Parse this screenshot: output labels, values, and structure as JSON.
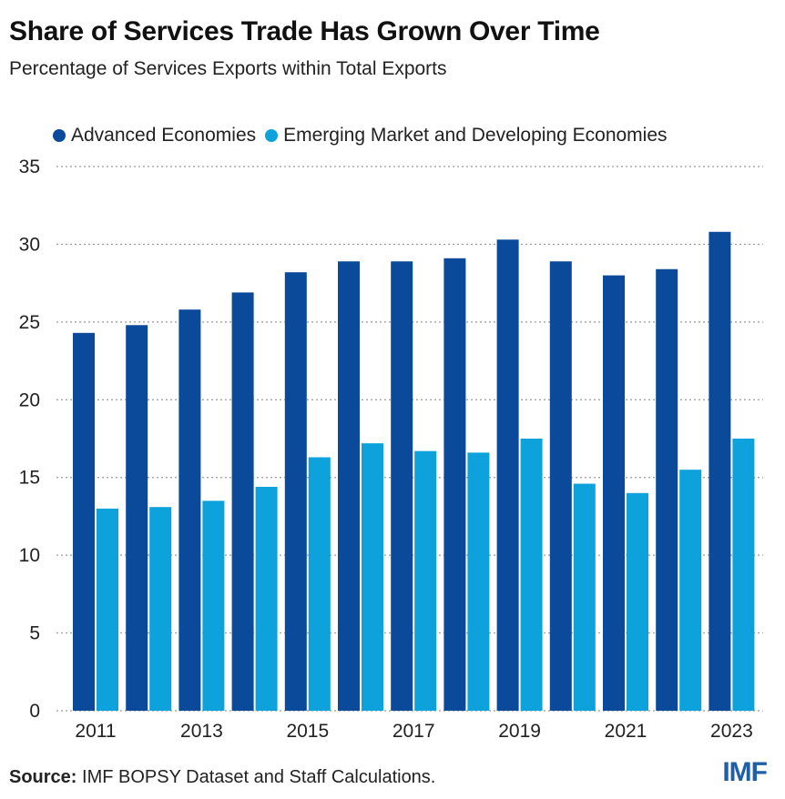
{
  "header": {
    "title": "Share of Services Trade Has Grown Over Time",
    "subtitle": "Percentage of Services Exports within Total Exports"
  },
  "colors": {
    "advanced": "#0b4a9b",
    "emerging": "#0ea2dd",
    "grid": "#9a9a9a"
  },
  "chart_data": {
    "type": "bar",
    "title": "Share of Services Trade Has Grown Over Time",
    "subtitle": "Percentage of Services Exports within Total Exports",
    "xlabel": "",
    "ylabel": "",
    "ylim": [
      0,
      35
    ],
    "yticks": [
      "0",
      "5",
      "10",
      "15",
      "20",
      "25",
      "30",
      "35"
    ],
    "ytick_values": [
      0,
      5,
      10,
      15,
      20,
      25,
      30,
      35
    ],
    "categories": [
      "2011",
      "2012",
      "2013",
      "2014",
      "2015",
      "2016",
      "2017",
      "2018",
      "2019",
      "2020",
      "2021",
      "2022",
      "2023"
    ],
    "xtick_labels": [
      "2011",
      "",
      "2013",
      "",
      "2015",
      "",
      "2017",
      "",
      "2019",
      "",
      "2021",
      "",
      "2023"
    ],
    "legend_position": "top",
    "grid": "horizontal dotted",
    "series": [
      {
        "name": "Advanced Economies",
        "values": [
          24.3,
          24.8,
          25.8,
          26.9,
          28.2,
          28.9,
          28.9,
          29.1,
          30.3,
          28.9,
          28.0,
          28.4,
          30.8
        ]
      },
      {
        "name": "Emerging Market and Developing Economies",
        "values": [
          13.0,
          13.1,
          13.5,
          14.4,
          16.3,
          17.2,
          16.7,
          16.6,
          17.5,
          14.6,
          14.0,
          15.5,
          17.5
        ]
      }
    ]
  },
  "footer": {
    "source_label": "Source:",
    "source_text": " IMF BOPSY Dataset and Staff Calculations.",
    "logo": "IMF"
  }
}
